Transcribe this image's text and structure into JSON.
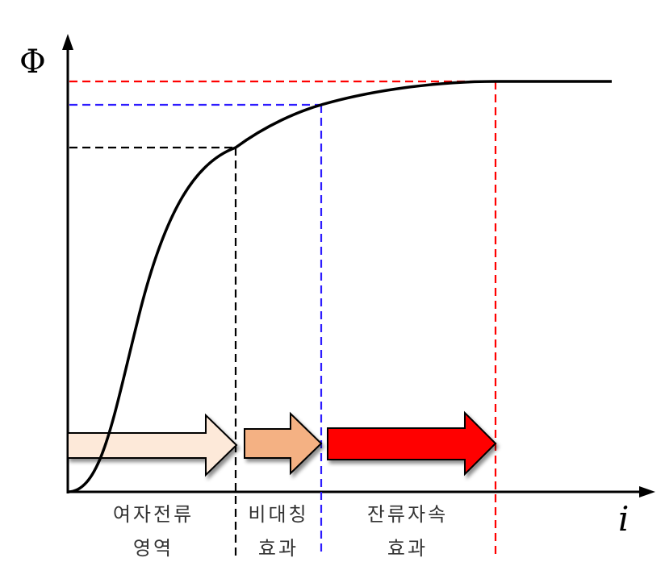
{
  "axes": {
    "y_symbol": "Φ",
    "x_symbol": "i"
  },
  "regions": [
    {
      "line1": "여자전류",
      "line2": "영역",
      "arrow_color": "#FDE9D9",
      "divider_color": "#000000"
    },
    {
      "line1": "비대칭",
      "line2": "효과",
      "arrow_color": "#F4B183",
      "divider_color": "#2E1CFF"
    },
    {
      "line1": "잔류자속",
      "line2": "효과",
      "arrow_color": "#FF0000",
      "divider_color": "#FF0000"
    }
  ],
  "colors": {
    "curve": "#000000",
    "axis": "#000000",
    "arrow_outline": "#000000"
  }
}
